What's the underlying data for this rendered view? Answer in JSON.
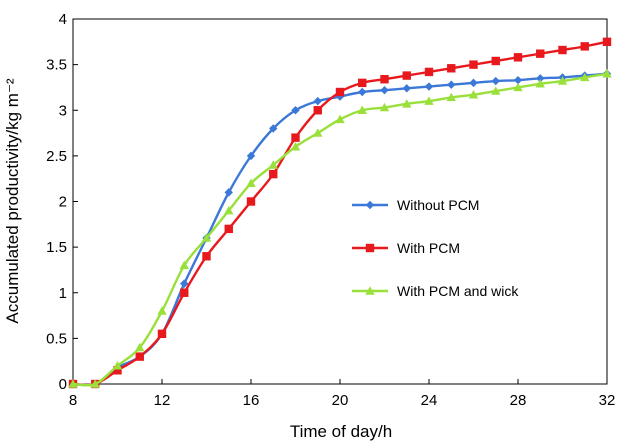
{
  "chart_data": {
    "type": "line",
    "title": "",
    "xlabel": "Time of day/h",
    "ylabel": "Accumulated  productivity/kg m⁻²",
    "xlim": [
      8,
      32
    ],
    "ylim": [
      0,
      4
    ],
    "xticks": [
      8,
      12,
      16,
      20,
      24,
      28,
      32
    ],
    "yticks": [
      0,
      0.5,
      1,
      1.5,
      2,
      2.5,
      3,
      3.5,
      4
    ],
    "ytick_labels": [
      "0",
      "0.5",
      "1",
      "1.5",
      "2",
      "2.5",
      "3",
      "3.5",
      "4"
    ],
    "grid": false,
    "legend_position": "center-right",
    "series": [
      {
        "name": "Without PCM",
        "color": "#3b78d8",
        "marker": "diamond",
        "x": [
          8,
          9,
          10,
          11,
          12,
          13,
          14,
          15,
          16,
          17,
          18,
          19,
          20,
          21,
          22,
          23,
          24,
          25,
          26,
          27,
          28,
          29,
          30,
          31,
          32
        ],
        "y": [
          0,
          0,
          0.18,
          0.3,
          0.55,
          1.1,
          1.6,
          2.1,
          2.5,
          2.8,
          3.0,
          3.1,
          3.15,
          3.2,
          3.22,
          3.24,
          3.26,
          3.28,
          3.3,
          3.32,
          3.33,
          3.35,
          3.36,
          3.38,
          3.4
        ]
      },
      {
        "name": "With PCM",
        "color": "#e8191c",
        "marker": "square",
        "x": [
          8,
          9,
          10,
          11,
          12,
          13,
          14,
          15,
          16,
          17,
          18,
          19,
          20,
          21,
          22,
          23,
          24,
          25,
          26,
          27,
          28,
          29,
          30,
          31,
          32
        ],
        "y": [
          0,
          0,
          0.15,
          0.3,
          0.55,
          1.0,
          1.4,
          1.7,
          2.0,
          2.3,
          2.7,
          3.0,
          3.2,
          3.3,
          3.34,
          3.38,
          3.42,
          3.46,
          3.5,
          3.54,
          3.58,
          3.62,
          3.66,
          3.7,
          3.75
        ]
      },
      {
        "name": "With PCM and wick",
        "color": "#99e03b",
        "marker": "triangle",
        "x": [
          8,
          9,
          10,
          11,
          12,
          13,
          14,
          15,
          16,
          17,
          18,
          19,
          20,
          21,
          22,
          23,
          24,
          25,
          26,
          27,
          28,
          29,
          30,
          31,
          32
        ],
        "y": [
          0,
          0,
          0.2,
          0.4,
          0.8,
          1.3,
          1.6,
          1.9,
          2.2,
          2.4,
          2.6,
          2.75,
          2.9,
          3.0,
          3.03,
          3.07,
          3.1,
          3.14,
          3.17,
          3.21,
          3.25,
          3.29,
          3.32,
          3.36,
          3.4
        ]
      }
    ]
  }
}
